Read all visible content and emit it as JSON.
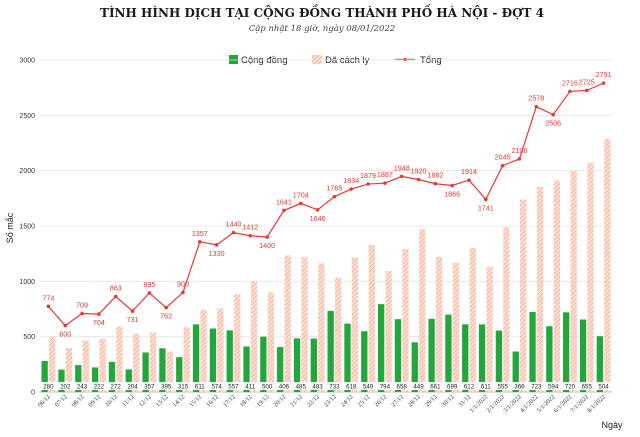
{
  "chart_data": {
    "type": "bar",
    "title": "TÌNH HÌNH DỊCH TẠI CỘNG ĐỒNG THÀNH PHỐ HÀ NỘI - ĐỢT 4",
    "subtitle": "Cập nhật 18 giờ, ngày 08/01/2022",
    "xlabel": "Ngày",
    "ylabel": "Số mắc",
    "ylim": [
      0,
      3000
    ],
    "yticks": [
      "0",
      "500",
      "1000",
      "1500",
      "2000",
      "2500",
      "3000"
    ],
    "legend_position": "top-center",
    "categories": [
      "06/12",
      "07/12",
      "08/12",
      "09/12",
      "10/12",
      "11/12",
      "12/12",
      "13/12",
      "14/12",
      "15/12",
      "16/12",
      "17/12",
      "18/12",
      "19/12",
      "20/12",
      "21/12",
      "22/12",
      "23/12",
      "24/12",
      "25/12",
      "26/12",
      "27/12",
      "28/12",
      "29/12",
      "30/12",
      "31/12",
      "1/1/2022",
      "2/1/2022",
      "3/1/2022",
      "4/1/2022",
      "5/1/2022",
      "6/1/2022",
      "7/1/2022",
      "8/1/2022"
    ],
    "series": [
      {
        "name": "Cộng đồng",
        "kind": "bar",
        "color": "#22a83a",
        "values": [
          280,
          202,
          243,
          222,
          272,
          204,
          357,
          395,
          315,
          611,
          574,
          557,
          411,
          500,
          406,
          485,
          483,
          733,
          618,
          549,
          794,
          658,
          449,
          661,
          699,
          612,
          611,
          555,
          366,
          723,
          594,
          720,
          655,
          504
        ]
      },
      {
        "name": "Đã cách ly",
        "kind": "bar",
        "color": "#f5a58a",
        "values": [
          494,
          398,
          466,
          482,
          591,
          527,
          538,
          367,
          585,
          746,
          756,
          883,
          1001,
          900,
          1235,
          1219,
          1163,
          1032,
          1216,
          1330,
          1093,
          1290,
          1471,
          1221,
          1167,
          1302,
          1130,
          1490,
          1740,
          1855,
          1912,
          1996,
          2070,
          2287
        ]
      },
      {
        "name": "Tổng",
        "kind": "line",
        "color": "#e53935",
        "values": [
          774,
          600,
          709,
          704,
          863,
          731,
          895,
          762,
          900,
          1357,
          1330,
          1440,
          1412,
          1400,
          1641,
          1704,
          1646,
          1765,
          1834,
          1879,
          1887,
          1948,
          1920,
          1882,
          1866,
          1914,
          1741,
          2045,
          2106,
          2578,
          2506,
          2716,
          2725,
          2791
        ]
      }
    ]
  }
}
